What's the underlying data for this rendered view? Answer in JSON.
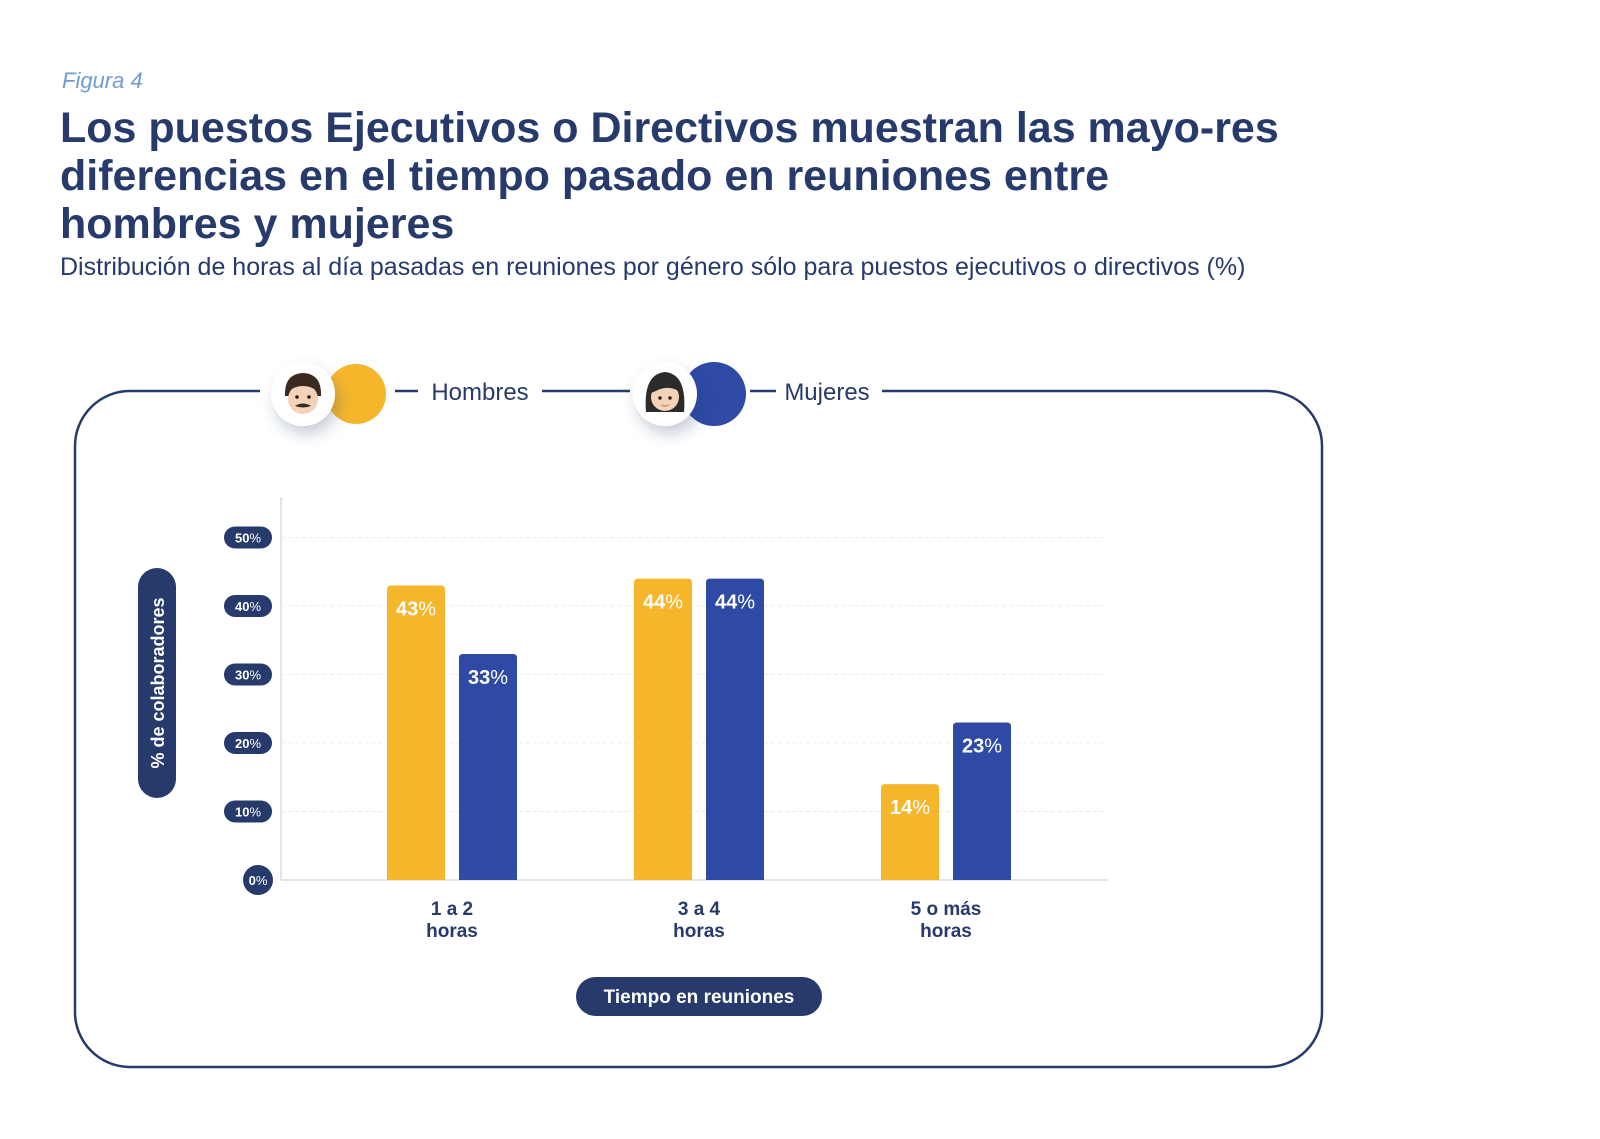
{
  "figure_label": "Figura 4",
  "title": "Los puestos Ejecutivos o Directivos muestran las mayo-res diferencias en el tiempo pasado en reuniones entre hombres y mujeres",
  "subtitle": "Distribución de horas al día pasadas en reuniones por género sólo para puestos ejecutivos o directivos (%)",
  "colors": {
    "men": "#f6b62c",
    "women": "#2e4aa5",
    "navy": "#263a6b"
  },
  "chart_data": {
    "type": "bar",
    "categories": [
      "1 a 2 horas",
      "3 a 4 horas",
      "5 o más horas"
    ],
    "category_lines": [
      [
        "1 a 2",
        "horas"
      ],
      [
        "3 a 4",
        "horas"
      ],
      [
        "5 o más",
        "horas"
      ]
    ],
    "series": [
      {
        "name": "Hombres",
        "icon": "man-emoji-icon",
        "color": "#f6b62c",
        "values": [
          43,
          44,
          14
        ]
      },
      {
        "name": "Mujeres",
        "icon": "woman-emoji-icon",
        "color": "#2e4aa5",
        "values": [
          33,
          44,
          23
        ]
      }
    ],
    "xlabel": "Tiempo en reuniones",
    "ylabel": "% de colaboradores",
    "yticks": [
      "0",
      "10",
      "20",
      "30",
      "40",
      "50"
    ],
    "ylim": [
      0,
      55
    ],
    "value_suffix": "%",
    "grid": true,
    "legend_position": "top"
  }
}
